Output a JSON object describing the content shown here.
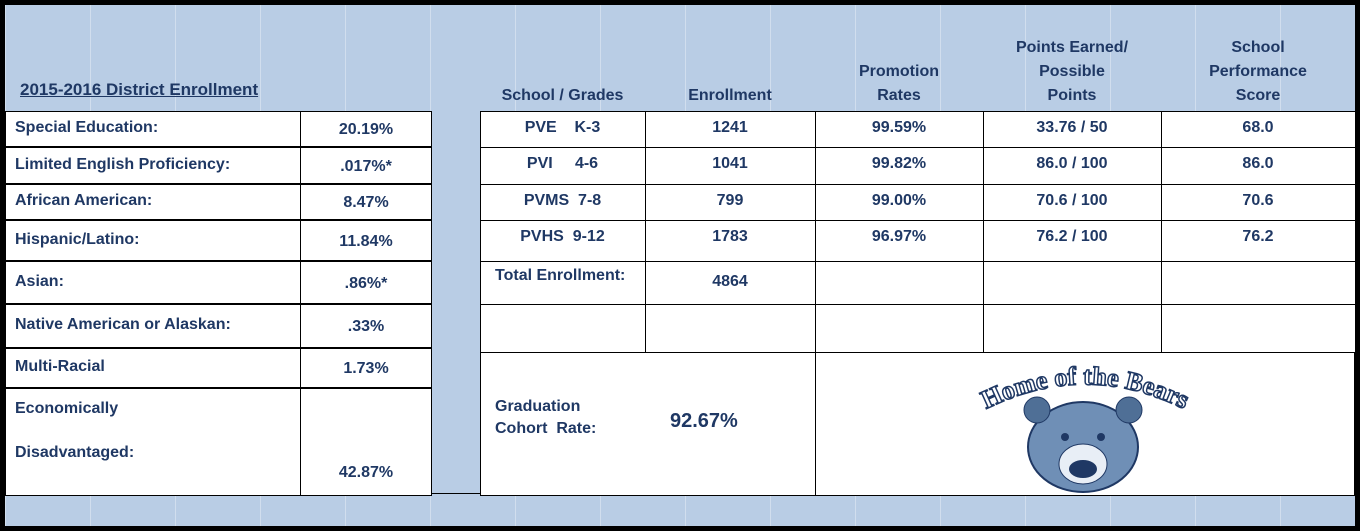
{
  "district_enrollment": {
    "title": "2015-2016 District Enrollment",
    "rows": [
      {
        "label": [
          "Special Education:"
        ],
        "value": "20.19%"
      },
      {
        "label": [
          "Limited English Proficiency:"
        ],
        "value": ".017%*"
      },
      {
        "label": [
          "African American:"
        ],
        "value": "8.47%"
      },
      {
        "label": [
          "Hispanic/Latino:"
        ],
        "value": "11.84%"
      },
      {
        "label": [
          "Asian:"
        ],
        "value": ".86%*"
      },
      {
        "label": [
          "Native American or Alaskan:"
        ],
        "value": ".33%"
      },
      {
        "label": [
          "Multi-Racial"
        ],
        "value": "1.73%"
      },
      {
        "label": [
          "Economically",
          "Disadvantaged:"
        ],
        "value": "42.87%"
      }
    ]
  },
  "schools": {
    "headers": [
      [
        "School / Grades"
      ],
      [
        "Enrollment"
      ],
      [
        "Promotion",
        "Rates"
      ],
      [
        "Points Earned/",
        "Possible",
        "Points"
      ],
      [
        "School",
        "Performance",
        "Score"
      ]
    ],
    "rows": [
      [
        "PVE    K-3",
        "1241",
        "99.59%",
        "33.76 / 50",
        "68.0"
      ],
      [
        "PVI     4-6",
        "1041",
        "99.82%",
        "86.0 / 100",
        "86.0"
      ],
      [
        "PVMS  7-8",
        "799",
        "99.00%",
        "70.6 / 100",
        "70.6"
      ],
      [
        "PVHS  9-12",
        "1783",
        "96.97%",
        "76.2 / 100",
        "76.2"
      ]
    ],
    "total": {
      "label": "Total Enrollment:",
      "value": "4864"
    },
    "graduation": {
      "label": [
        "Graduation",
        "Cohort  Rate:"
      ],
      "value": "92.67%"
    },
    "logo_text": "Home of the Bears"
  }
}
